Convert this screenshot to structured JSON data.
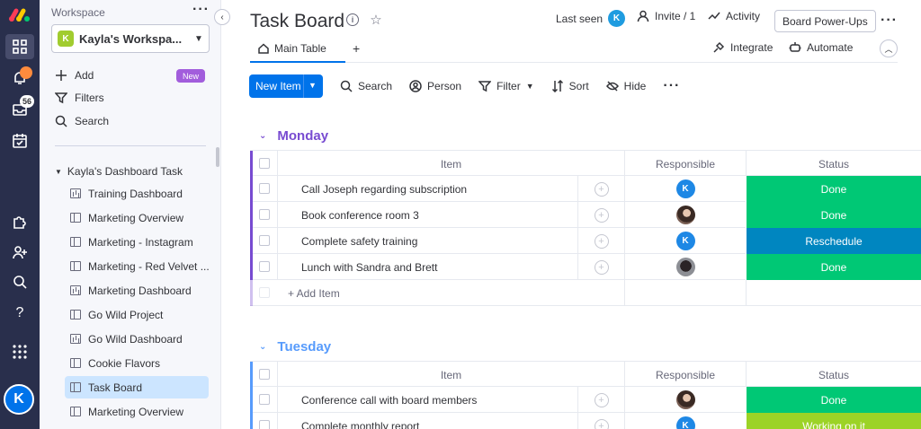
{
  "sidebar": {
    "workspace_label": "Workspace",
    "workspace_initial": "K",
    "workspace_name": "Kayla's Workspa...",
    "add_label": "Add",
    "new_badge": "New",
    "filters_label": "Filters",
    "search_label": "Search",
    "folder_name": "Kayla's Dashboard Task",
    "boards": [
      {
        "label": "Training Dashboard",
        "icon": "dashboard-icon"
      },
      {
        "label": "Marketing Overview",
        "icon": "board-icon"
      },
      {
        "label": "Marketing - Instagram",
        "icon": "board-icon"
      },
      {
        "label": "Marketing - Red Velvet ...",
        "icon": "board-icon"
      },
      {
        "label": "Marketing Dashboard",
        "icon": "dashboard-icon"
      },
      {
        "label": "Go Wild Project",
        "icon": "board-icon"
      },
      {
        "label": "Go Wild Dashboard",
        "icon": "dashboard-icon"
      },
      {
        "label": "Cookie Flavors",
        "icon": "board-icon"
      },
      {
        "label": "Task Board",
        "icon": "board-icon",
        "selected": true
      },
      {
        "label": "Marketing Overview",
        "icon": "board-icon"
      }
    ]
  },
  "rail": {
    "notifications_badge": "",
    "inbox_badge": "56",
    "user_initial": "K"
  },
  "header": {
    "title": "Task Board",
    "last_seen_label": "Last seen",
    "last_seen_initial": "K",
    "invite_label": "Invite / 1",
    "activity_label": "Activity",
    "power_ups_label": "Board Power-Ups",
    "tab_main": "Main Table",
    "tab_add": "+",
    "integrate_label": "Integrate",
    "automate_label": "Automate"
  },
  "toolbar": {
    "new_item": "New Item",
    "search": "Search",
    "person": "Person",
    "filter": "Filter",
    "sort": "Sort",
    "hide": "Hide"
  },
  "columns": {
    "item": "Item",
    "responsible": "Responsible",
    "status": "Status"
  },
  "colors": {
    "monday": "#784bd1",
    "tuesday": "#579bfc",
    "done": "#00c875",
    "reschedule": "#0086c0",
    "working": "#9cd326",
    "primary": "#0073ea"
  },
  "groups": [
    {
      "name": "Monday",
      "rows": [
        {
          "item": "Call Joseph regarding subscription",
          "responsible": "K",
          "status": "Done"
        },
        {
          "item": "Book conference room 3",
          "responsible": "photo",
          "status": "Done"
        },
        {
          "item": "Complete safety training",
          "responsible": "K",
          "status": "Reschedule"
        },
        {
          "item": "Lunch with Sandra and Brett",
          "responsible": "photo2",
          "status": "Done"
        }
      ],
      "add_item": "+ Add Item"
    },
    {
      "name": "Tuesday",
      "rows": [
        {
          "item": "Conference call with board members",
          "responsible": "photo",
          "status": "Done"
        },
        {
          "item": "Complete monthly report",
          "responsible": "K",
          "status": "Working on it"
        }
      ]
    }
  ]
}
